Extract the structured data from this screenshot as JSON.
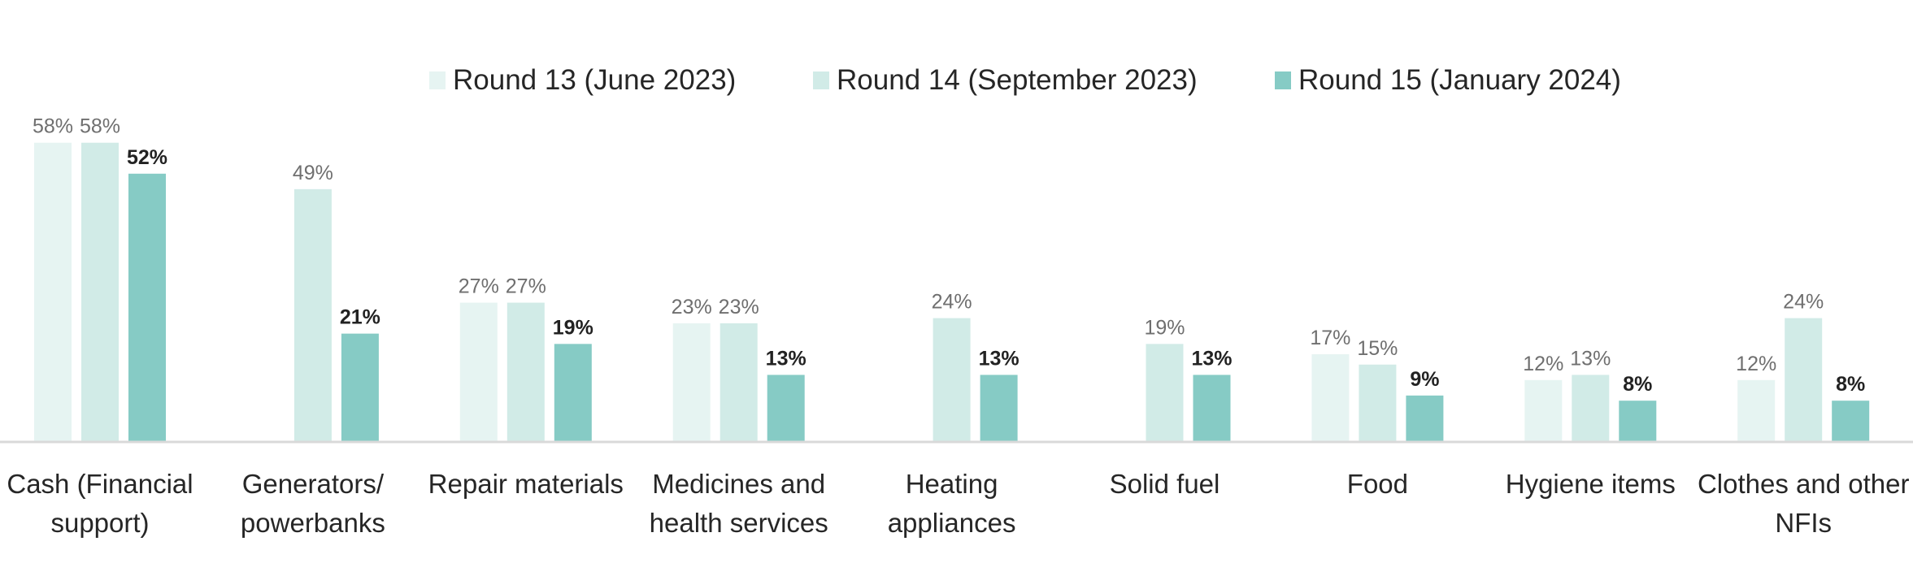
{
  "chart_data": {
    "type": "bar",
    "title": "",
    "xlabel": "",
    "ylabel": "",
    "ylim": [
      0,
      60
    ],
    "grid": false,
    "legend_position": "top",
    "unit": "%",
    "categories": [
      [
        "Cash (Financial",
        "support)"
      ],
      [
        "Generators/",
        "powerbanks"
      ],
      [
        "Repair materials"
      ],
      [
        "Medicines and",
        "health services"
      ],
      [
        "Heating",
        "appliances"
      ],
      [
        "Solid fuel"
      ],
      [
        "Food"
      ],
      [
        "Hygiene items"
      ],
      [
        "Clothes and other",
        "NFIs"
      ]
    ],
    "series": [
      {
        "name": "Round 13 (June 2023)",
        "color": "#e6f4f2",
        "values": [
          58,
          null,
          27,
          23,
          null,
          null,
          17,
          12,
          12
        ],
        "labels": [
          "58%",
          "",
          "27%",
          "23%",
          "",
          "",
          "17%",
          "12%",
          "12%"
        ]
      },
      {
        "name": "Round 14 (September 2023)",
        "color": "#d1ebe7",
        "values": [
          58,
          49,
          27,
          23,
          24,
          19,
          15,
          13,
          24
        ],
        "labels": [
          "58%",
          "49%",
          "27%",
          "23%",
          "24%",
          "19%",
          "15%",
          "13%",
          "24%"
        ]
      },
      {
        "name": "Round 15 (January 2024)",
        "color": "#86cbc5",
        "values": [
          52,
          21,
          19,
          13,
          13,
          13,
          9,
          8,
          8
        ],
        "labels": [
          "52%",
          "21%",
          "19%",
          "13%",
          "13%",
          "13%",
          "9%",
          "8%",
          "8%"
        ]
      }
    ]
  }
}
